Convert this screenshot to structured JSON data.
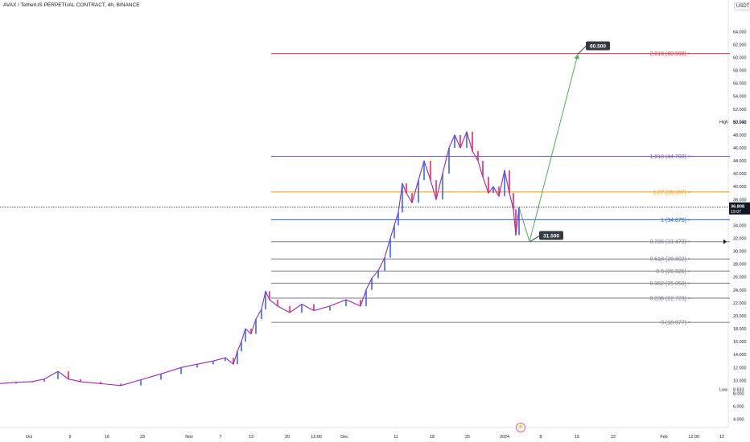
{
  "header": {
    "title": "AVAX / TetherUS PERPETUAL CONTRACT, 4h, BINANCE",
    "currency": "USDT"
  },
  "icons": {
    "event_marker": "lightning-icon"
  },
  "colors": {
    "up_candle": "#2962ff",
    "down_candle": "#e91e63",
    "price_line": "#9c27b0",
    "projection_arrow": "#4caf50",
    "fib_2618": "#f23645",
    "fib_1618": "#7e57c2",
    "fib_127": "#ff9800",
    "fib_1": "#2962ff",
    "fib_grey": "#787b86",
    "label_bg": "#363a45"
  },
  "chart_data": {
    "type": "line",
    "x_ticks": [
      "Oct",
      "9",
      "16",
      "23",
      "Nov",
      "7",
      "13",
      "20",
      "12:00",
      "Dec",
      "11",
      "18",
      "25",
      "2024",
      "8",
      "15",
      "22",
      "Feb",
      "12:00",
      "12"
    ],
    "y_ticks": [
      "4.000",
      "6.000",
      "8.000",
      "10.000",
      "12.000",
      "14.000",
      "16.000",
      "18.000",
      "20.000",
      "22.000",
      "24.000",
      "26.000",
      "28.000",
      "30.000",
      "32.000",
      "34.000",
      "36.000",
      "38.000",
      "40.000",
      "42.000",
      "44.000",
      "46.000",
      "48.000",
      "50.000",
      "52.000",
      "54.000",
      "56.000",
      "58.000",
      "60.000",
      "62.000",
      "64.000"
    ],
    "ylim": [
      2.7,
      67.4
    ],
    "series": [
      {
        "x": [
          0,
          20,
          40,
          55,
          72,
          85,
          100,
          125,
          150,
          175,
          200,
          225,
          245,
          265,
          280,
          290,
          295,
          300,
          305,
          312,
          318,
          325,
          330,
          335,
          345,
          360,
          375,
          390,
          410,
          430,
          448,
          455,
          462,
          470,
          478,
          485,
          490,
          495,
          500,
          505,
          512,
          520,
          527,
          535,
          542,
          550,
          558,
          565,
          572,
          580,
          587,
          594,
          600,
          607,
          613,
          620,
          627,
          633,
          638,
          641,
          645
        ],
        "y": [
          9.5,
          9.7,
          9.8,
          10.2,
          11.4,
          10.2,
          9.8,
          9.5,
          9.2,
          10.1,
          11.0,
          12.0,
          12.5,
          13.0,
          13.5,
          12.5,
          14.5,
          16.0,
          18.0,
          17.2,
          19.5,
          21.0,
          23.8,
          22.5,
          21.5,
          20.5,
          21.8,
          20.8,
          21.5,
          22.5,
          21.5,
          24.0,
          25.8,
          27.0,
          29.0,
          32.0,
          34.0,
          36.0,
          40.5,
          39.0,
          37.5,
          41.0,
          44.0,
          41.0,
          38.0,
          42.0,
          46.0,
          48.0,
          46.0,
          48.5,
          45.5,
          44.0,
          41.5,
          39.0,
          40.0,
          38.5,
          42.5,
          39.0,
          36.5,
          32.5,
          36.8
        ]
      }
    ],
    "projection": {
      "points": [
        [
          645,
          36.8
        ],
        [
          658,
          31.5
        ],
        [
          718,
          60.5
        ]
      ],
      "labels": [
        "31.500",
        "60.500"
      ]
    },
    "fib_levels": [
      {
        "ratio": "2.618",
        "value": 60.598,
        "label": "2.618 (60.598)",
        "color": "#f23645"
      },
      {
        "ratio": "1.618",
        "value": 44.7,
        "label": "1.618 (44.700)",
        "color": "#7e57c2"
      },
      {
        "ratio": "1.27",
        "value": 39.167,
        "label": "1.27 (39.167)",
        "color": "#ff9800"
      },
      {
        "ratio": "1",
        "value": 34.875,
        "label": "1 (34.875)",
        "color": "#2962ff"
      },
      {
        "ratio": "0.786",
        "value": 31.473,
        "label": "0.786 (31.473)",
        "color": "#787b86"
      },
      {
        "ratio": "0.618",
        "value": 28.802,
        "label": "0.618 (28.802)",
        "color": "#787b86"
      },
      {
        "ratio": "0.5",
        "value": 26.926,
        "label": "0.5 (26.926)",
        "color": "#787b86"
      },
      {
        "ratio": "0.382",
        "value": 25.05,
        "label": "0.382 (25.050)",
        "color": "#787b86"
      },
      {
        "ratio": "0.236",
        "value": 22.729,
        "label": "0.236 (22.729)",
        "color": "#787b86"
      },
      {
        "ratio": "0",
        "value": 18.977,
        "label": "0 (18.977)",
        "color": "#787b86"
      }
    ],
    "high": {
      "label": "High",
      "value": "50.040",
      "y": 50.04
    },
    "low": {
      "label": "Low",
      "value": "8.633",
      "y": 8.633
    },
    "current_price": {
      "value": "36.808",
      "countdown": "19:07",
      "y": 36.808
    },
    "grid": false,
    "legend": "none"
  }
}
